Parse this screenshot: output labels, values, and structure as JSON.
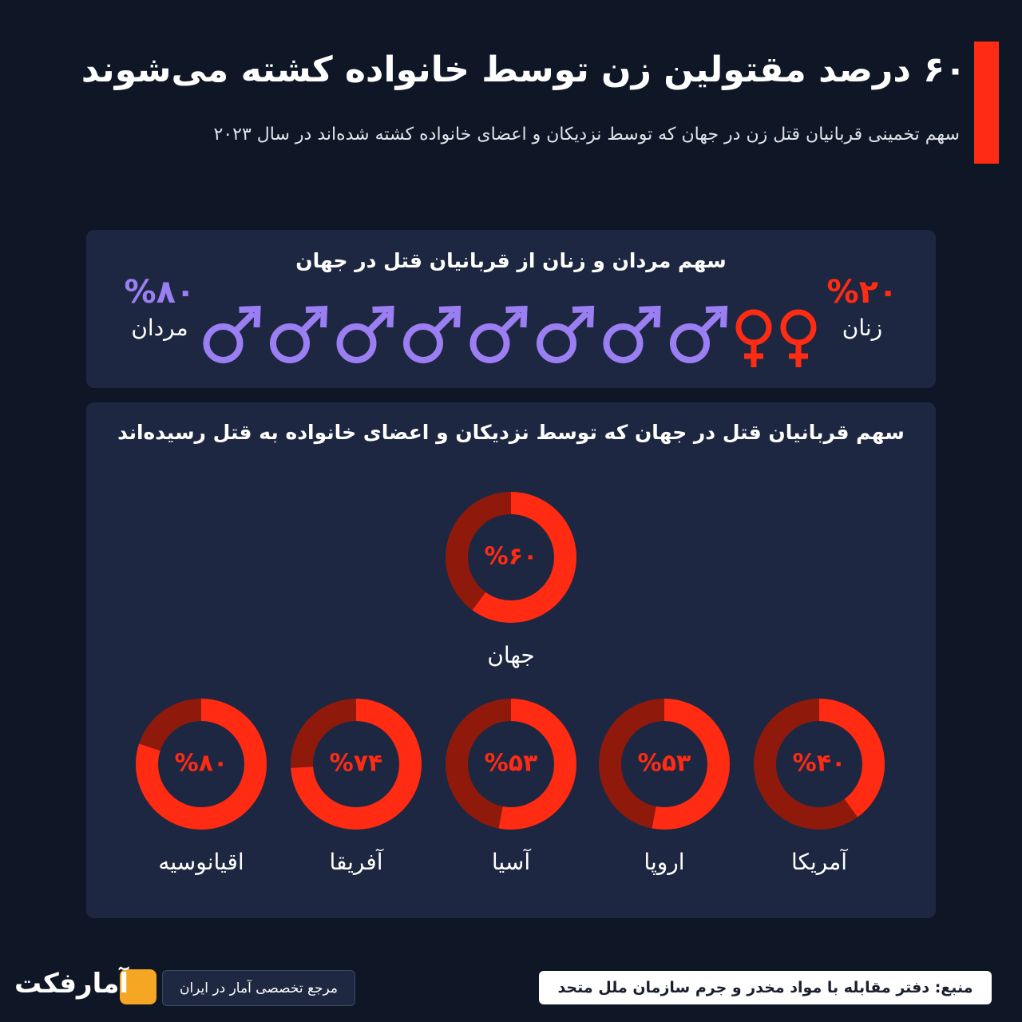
{
  "header": {
    "title": "۶۰ درصد مقتولین زن توسط خانواده کشته می‌شوند",
    "subtitle": "سهم تخمینی قربانیان قتل زن در جهان که توسط نزدیکان و اعضای خانواده کشته شده‌اند در سال ۲۰۲۳"
  },
  "chart_data": [
    {
      "type": "pictogram",
      "title": "سهم مردان و زنان از قربانیان قتل در جهان",
      "categories": [
        "مردان",
        "زنان"
      ],
      "values": [
        80,
        20
      ],
      "value_labels": [
        "%۸۰",
        "%۲۰"
      ],
      "colors": [
        "#9b7ff2",
        "#ff2b12"
      ]
    },
    {
      "type": "donut",
      "title": "سهم قربانیان قتل در جهان که توسط نزدیکان و اعضای خانواده به قتل رسیده‌اند",
      "categories": [
        "جهان",
        "آمریکا",
        "اروپا",
        "آسیا",
        "آفریقا",
        "اقیانوسیه"
      ],
      "values": [
        60,
        40,
        53,
        53,
        74,
        80
      ],
      "value_labels": [
        "%۶۰",
        "%۴۰",
        "%۵۳",
        "%۵۳",
        "%۷۴",
        "%۸۰"
      ],
      "color": "#ff2b12",
      "track_color": "#8f1a0c"
    }
  ],
  "footer": {
    "source": "منبع: دفتر مقابله با مواد مخدر و جرم سازمان ملل متحد",
    "tagline": "مرجع تخصصی آمار در ایران",
    "brand": "آمارفکت"
  }
}
